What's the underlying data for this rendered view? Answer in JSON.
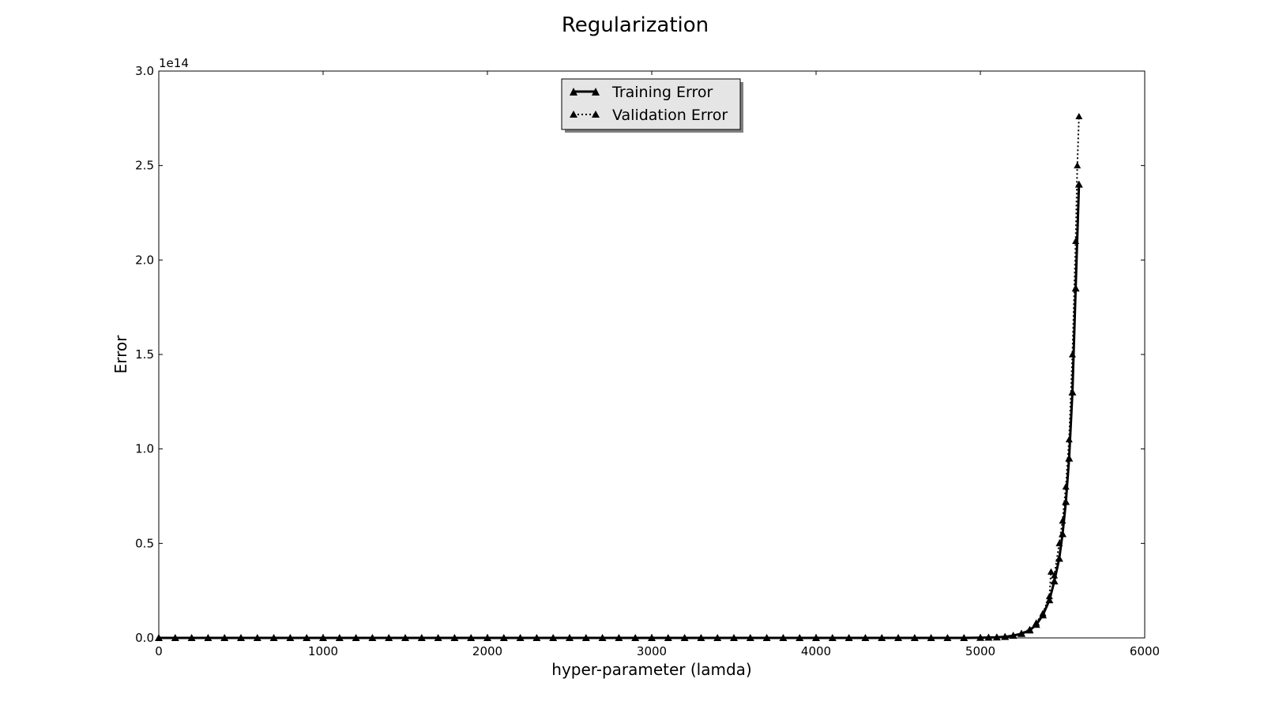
{
  "chart_data": {
    "type": "line",
    "title": "Regularization",
    "xlabel": "hyper-parameter (lamda)",
    "ylabel": "Error",
    "y_offset_label": "1e14",
    "xlim": [
      0,
      6000
    ],
    "ylim": [
      0,
      3.0
    ],
    "y_scale": "×1e14",
    "grid": false,
    "legend_placement": "upper-center",
    "x_ticks": [
      "0",
      "1000",
      "2000",
      "3000",
      "4000",
      "5000",
      "6000"
    ],
    "y_ticks": [
      "0.0",
      "0.5",
      "1.0",
      "1.5",
      "2.0",
      "2.5",
      "3.0"
    ],
    "series": [
      {
        "name": "Training Error",
        "style": "solid",
        "marker": "triangle",
        "color": "#000000",
        "x": [
          0,
          100,
          200,
          300,
          400,
          500,
          600,
          700,
          800,
          900,
          1000,
          1100,
          1200,
          1300,
          1400,
          1500,
          1600,
          1700,
          1800,
          1900,
          2000,
          2100,
          2200,
          2300,
          2400,
          2500,
          2600,
          2700,
          2800,
          2900,
          3000,
          3100,
          3200,
          3300,
          3400,
          3500,
          3600,
          3700,
          3800,
          3900,
          4000,
          4100,
          4200,
          4300,
          4400,
          4500,
          4600,
          4700,
          4800,
          4900,
          5000,
          5050,
          5100,
          5150,
          5200,
          5250,
          5300,
          5340,
          5380,
          5420,
          5450,
          5480,
          5500,
          5520,
          5540,
          5560,
          5580,
          5600
        ],
        "values": [
          0,
          0,
          0,
          0,
          0,
          0,
          0,
          0,
          0,
          0,
          0,
          0,
          0,
          0,
          0,
          0,
          0,
          0,
          0,
          0,
          0,
          0,
          0,
          0,
          0,
          0,
          0,
          0,
          0,
          0,
          0,
          0,
          0,
          0,
          0,
          0,
          0,
          0,
          0,
          0,
          0,
          0,
          0,
          0,
          0,
          0,
          0,
          0,
          0,
          0,
          0.001,
          0.002,
          0.003,
          0.006,
          0.012,
          0.022,
          0.04,
          0.07,
          0.12,
          0.2,
          0.3,
          0.42,
          0.55,
          0.72,
          0.95,
          1.3,
          1.85,
          2.4
        ]
      },
      {
        "name": "Validation Error",
        "style": "dotted",
        "marker": "triangle",
        "color": "#000000",
        "x": [
          0,
          100,
          200,
          300,
          400,
          500,
          600,
          700,
          800,
          900,
          1000,
          1100,
          1200,
          1300,
          1400,
          1500,
          1600,
          1700,
          1800,
          1900,
          2000,
          2100,
          2200,
          2300,
          2400,
          2500,
          2600,
          2700,
          2800,
          2900,
          3000,
          3100,
          3200,
          3300,
          3400,
          3500,
          3600,
          3700,
          3800,
          3900,
          4000,
          4100,
          4200,
          4300,
          4400,
          4500,
          4600,
          4700,
          4800,
          4900,
          5000,
          5050,
          5100,
          5150,
          5200,
          5250,
          5300,
          5340,
          5380,
          5420,
          5430,
          5450,
          5480,
          5500,
          5520,
          5540,
          5560,
          5580,
          5590,
          5600
        ],
        "values": [
          0,
          0,
          0,
          0,
          0,
          0,
          0,
          0,
          0,
          0,
          0,
          0,
          0,
          0,
          0,
          0,
          0,
          0,
          0,
          0,
          0,
          0,
          0,
          0,
          0,
          0,
          0,
          0,
          0,
          0,
          0,
          0,
          0,
          0,
          0,
          0,
          0,
          0,
          0,
          0,
          0,
          0,
          0,
          0,
          0,
          0,
          0,
          0,
          0,
          0,
          0.001,
          0.002,
          0.004,
          0.007,
          0.013,
          0.025,
          0.045,
          0.08,
          0.13,
          0.22,
          0.35,
          0.33,
          0.5,
          0.62,
          0.8,
          1.05,
          1.5,
          2.1,
          2.5,
          2.76
        ]
      }
    ]
  }
}
